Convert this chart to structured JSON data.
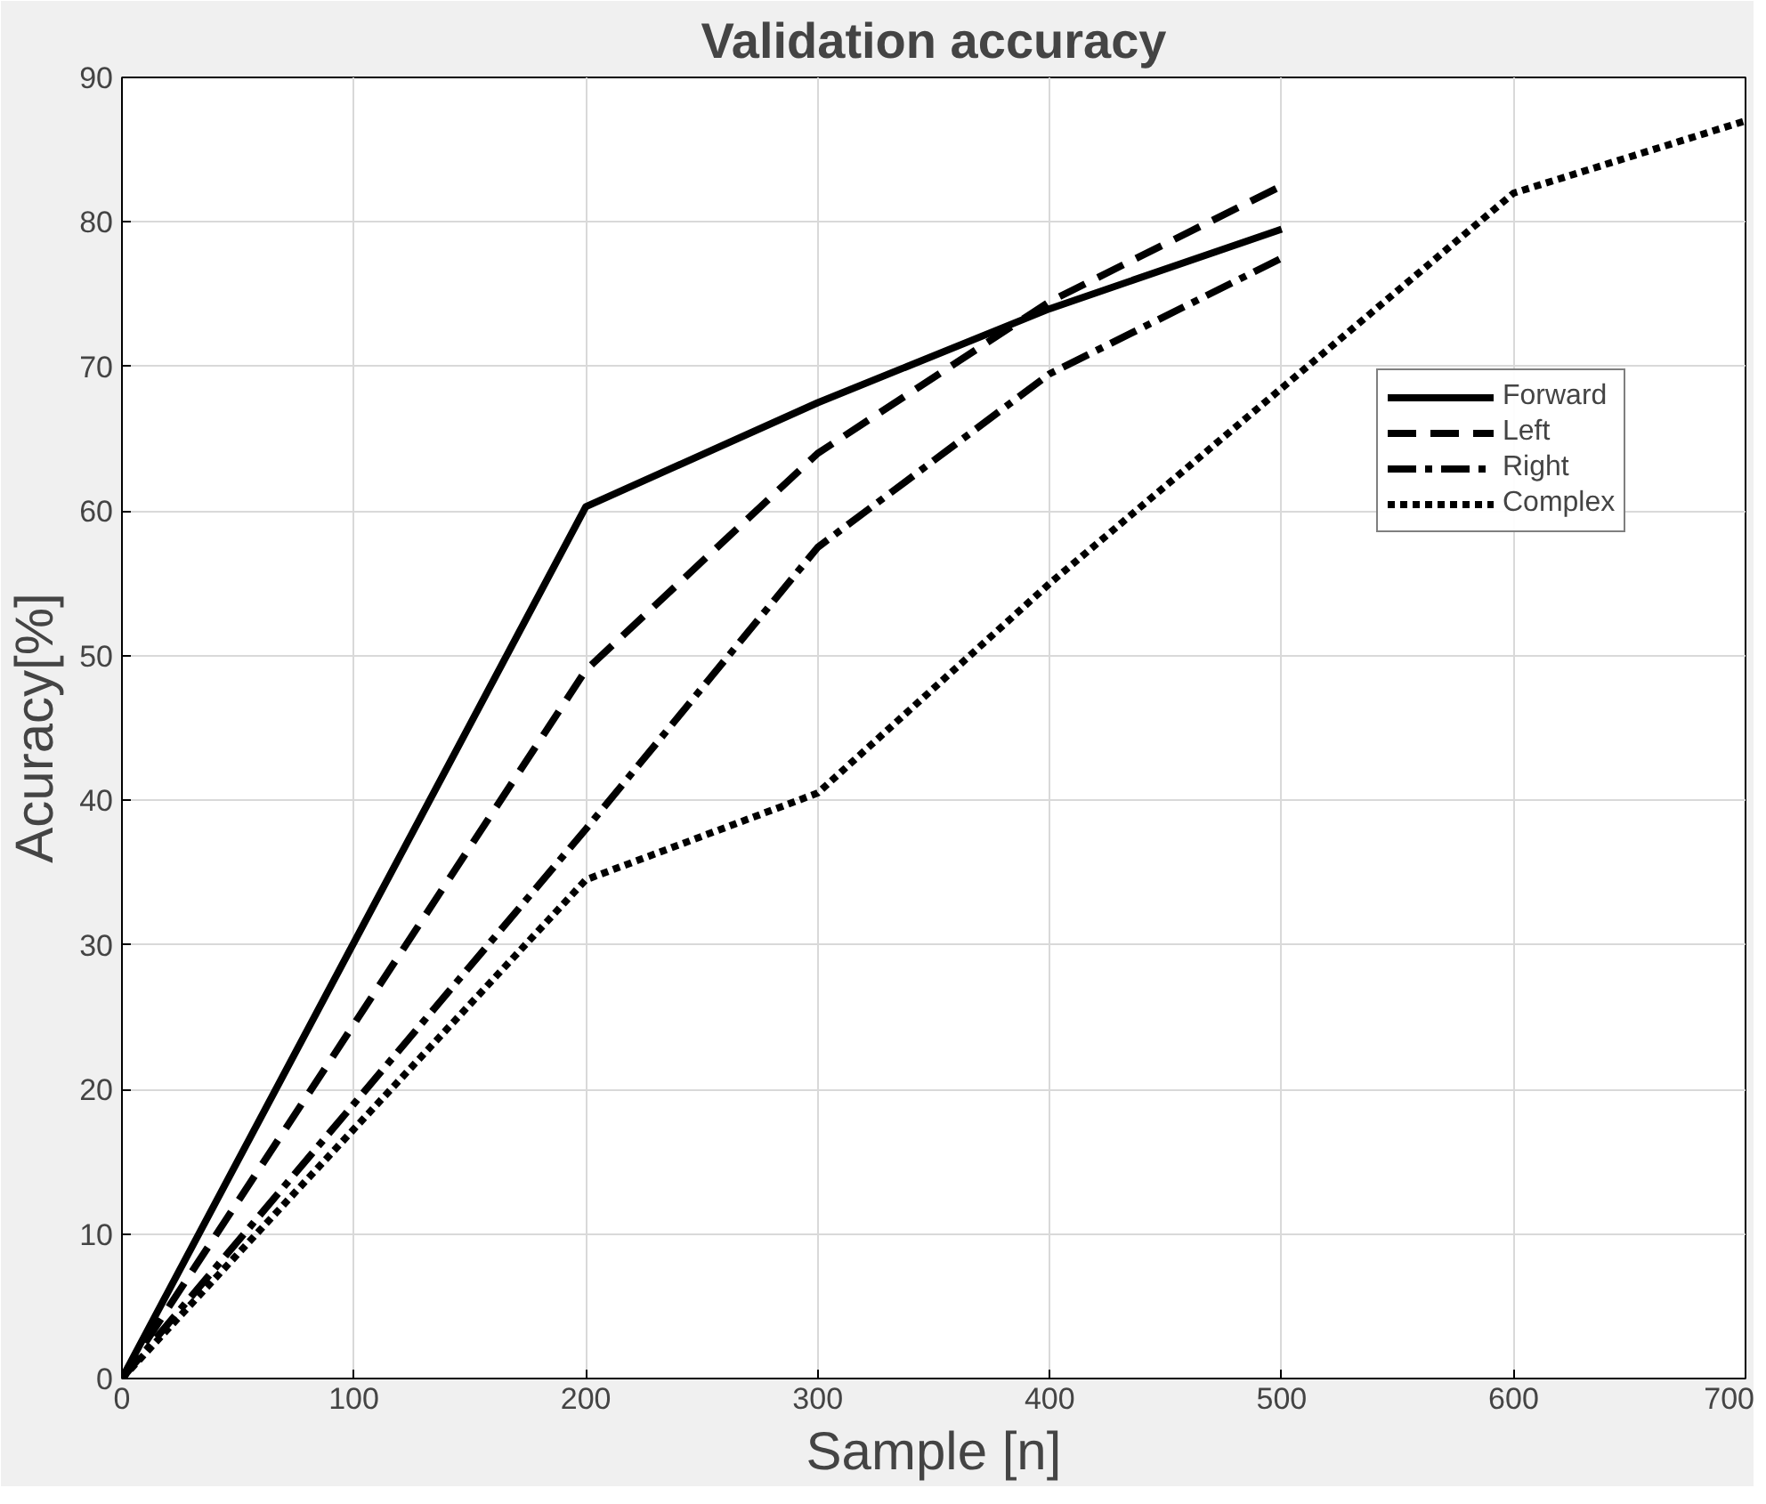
{
  "chart_data": {
    "type": "line",
    "title": "Validation accuracy",
    "xlabel": "Sample [n]",
    "ylabel": "Acuracy[%]",
    "xlim": [
      0,
      700
    ],
    "ylim": [
      0,
      90
    ],
    "xticks": [
      0,
      100,
      200,
      300,
      400,
      500,
      600,
      700
    ],
    "yticks": [
      0,
      10,
      20,
      30,
      40,
      50,
      60,
      70,
      80,
      90
    ],
    "grid": true,
    "legend": "top right",
    "series": [
      {
        "name": "Forward",
        "color": "#000000",
        "line_style": "solid",
        "x": [
          0,
          200,
          300,
          400,
          500
        ],
        "values": [
          0,
          60.3,
          67.5,
          74,
          79.5
        ]
      },
      {
        "name": "Left",
        "color": "#000000",
        "line_style": "dashed",
        "x": [
          0,
          200,
          300,
          400,
          500
        ],
        "values": [
          0,
          49,
          64,
          74.5,
          82.5
        ]
      },
      {
        "name": "Right",
        "color": "#000000",
        "line_style": "dashdot",
        "x": [
          0,
          200,
          300,
          400,
          500
        ],
        "values": [
          0,
          38,
          57.5,
          69.5,
          77.5
        ]
      },
      {
        "name": "Complex",
        "color": "#000000",
        "line_style": "dotted",
        "x": [
          0,
          200,
          300,
          400,
          500,
          600,
          700
        ],
        "values": [
          0,
          34.5,
          40.5,
          55,
          68.5,
          82,
          87
        ]
      }
    ]
  }
}
